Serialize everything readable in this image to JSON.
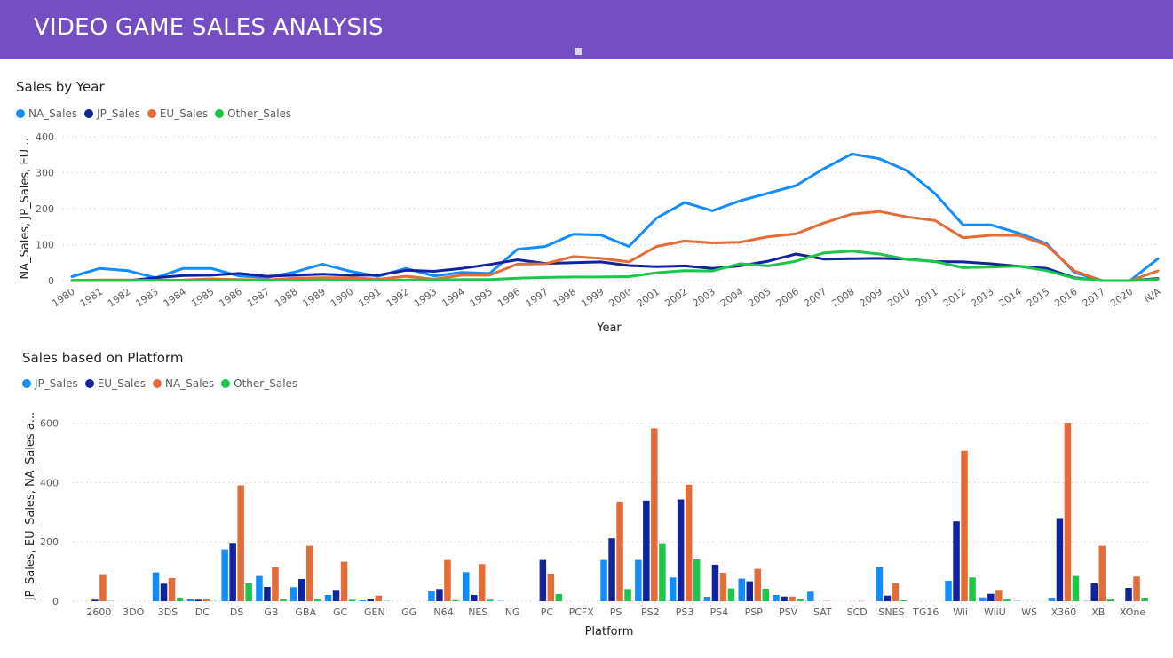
{
  "header": {
    "title": "VIDEO GAME SALES ANALYSIS"
  },
  "chart_data": [
    {
      "type": "line",
      "title": "Sales by Year",
      "xlabel": "Year",
      "ylabel": "NA_Sales, JP_Sales, EU...",
      "ylim": [
        0,
        400
      ],
      "yticks": [
        0,
        100,
        200,
        300,
        400
      ],
      "grid": true,
      "legend_position": "top-left",
      "x": [
        "1980",
        "1981",
        "1982",
        "1983",
        "1984",
        "1985",
        "1986",
        "1987",
        "1988",
        "1989",
        "1990",
        "1991",
        "1992",
        "1993",
        "1994",
        "1995",
        "1996",
        "1997",
        "1998",
        "1999",
        "2000",
        "2001",
        "2002",
        "2003",
        "2004",
        "2005",
        "2006",
        "2007",
        "2008",
        "2009",
        "2010",
        "2011",
        "2012",
        "2013",
        "2014",
        "2015",
        "2016",
        "2017",
        "2020",
        "N/A"
      ],
      "series": [
        {
          "name": "NA_Sales",
          "color": "#118dff",
          "values": [
            11,
            34,
            28,
            8,
            34,
            34,
            13,
            9,
            24,
            46,
            26,
            12,
            34,
            13,
            23,
            20,
            87,
            95,
            129,
            127,
            95,
            174,
            217,
            194,
            222,
            243,
            264,
            311,
            352,
            339,
            305,
            242,
            155,
            155,
            132,
            103,
            23,
            0,
            0,
            61
          ]
        },
        {
          "name": "JP_Sales",
          "color": "#12239e",
          "values": [
            0,
            0,
            0,
            8,
            14,
            15,
            20,
            12,
            15,
            18,
            15,
            15,
            29,
            26,
            34,
            45,
            58,
            48,
            50,
            52,
            42,
            39,
            41,
            34,
            41,
            54,
            74,
            60,
            61,
            62,
            60,
            53,
            52,
            47,
            40,
            34,
            8,
            0,
            0,
            6
          ]
        },
        {
          "name": "EU_Sales",
          "color": "#e66c37",
          "values": [
            1,
            2,
            2,
            1,
            2,
            5,
            3,
            2,
            7,
            8,
            8,
            4,
            12,
            4,
            15,
            15,
            46,
            47,
            67,
            62,
            52,
            95,
            110,
            105,
            107,
            122,
            130,
            160,
            185,
            192,
            177,
            167,
            119,
            126,
            126,
            99,
            27,
            0,
            0,
            27
          ]
        },
        {
          "name": "Other_Sales",
          "color": "#1ac74b",
          "values": [
            0,
            0,
            0,
            1,
            1,
            1,
            2,
            1,
            1,
            2,
            1,
            1,
            2,
            2,
            3,
            3,
            7,
            9,
            10,
            10,
            11,
            22,
            28,
            27,
            47,
            41,
            54,
            77,
            82,
            74,
            59,
            53,
            36,
            38,
            40,
            28,
            7,
            0,
            0,
            4
          ]
        }
      ]
    },
    {
      "type": "bar",
      "title": "Sales based on Platform",
      "xlabel": "Platform",
      "ylabel": "JP_Sales, EU_Sales, NA_Sales a...",
      "ylim": [
        0,
        650
      ],
      "yticks": [
        0,
        200,
        400,
        600
      ],
      "grid": true,
      "legend_position": "top-left",
      "categories": [
        "2600",
        "3DO",
        "3DS",
        "DC",
        "DS",
        "GB",
        "GBA",
        "GC",
        "GEN",
        "GG",
        "N64",
        "NES",
        "NG",
        "PC",
        "PCFX",
        "PS",
        "PS2",
        "PS3",
        "PS4",
        "PSP",
        "PSV",
        "SAT",
        "SCD",
        "SNES",
        "TG16",
        "Wii",
        "WiiU",
        "WS",
        "X360",
        "XB",
        "XOne"
      ],
      "series": [
        {
          "name": "JP_Sales",
          "color": "#118dff",
          "values": [
            0,
            0,
            97,
            8,
            175,
            85,
            47,
            21,
            3,
            0,
            34,
            98,
            1,
            0,
            0,
            139,
            139,
            80,
            15,
            76,
            21,
            32,
            0,
            116,
            0,
            69,
            13,
            1,
            12,
            1,
            0
          ]
        },
        {
          "name": "EU_Sales",
          "color": "#12239e",
          "values": [
            5,
            0,
            59,
            5,
            194,
            48,
            75,
            38,
            6,
            0,
            41,
            21,
            0,
            139,
            0,
            212,
            339,
            343,
            123,
            67,
            16,
            0,
            0,
            19,
            0,
            269,
            25,
            0,
            280,
            60,
            45
          ]
        },
        {
          "name": "NA_Sales",
          "color": "#e66c37",
          "values": [
            91,
            0,
            78,
            6,
            391,
            114,
            187,
            133,
            19,
            0,
            139,
            125,
            0,
            93,
            0,
            336,
            583,
            393,
            96,
            109,
            16,
            1,
            1,
            61,
            0,
            507,
            38,
            0,
            602,
            187,
            83
          ]
        },
        {
          "name": "Other_Sales",
          "color": "#1ac74b",
          "values": [
            1,
            0,
            12,
            1,
            60,
            8,
            8,
            5,
            1,
            0,
            4,
            5,
            0,
            24,
            0,
            41,
            193,
            141,
            43,
            42,
            8,
            0,
            0,
            3,
            0,
            80,
            6,
            0,
            85,
            9,
            12
          ]
        }
      ]
    }
  ]
}
